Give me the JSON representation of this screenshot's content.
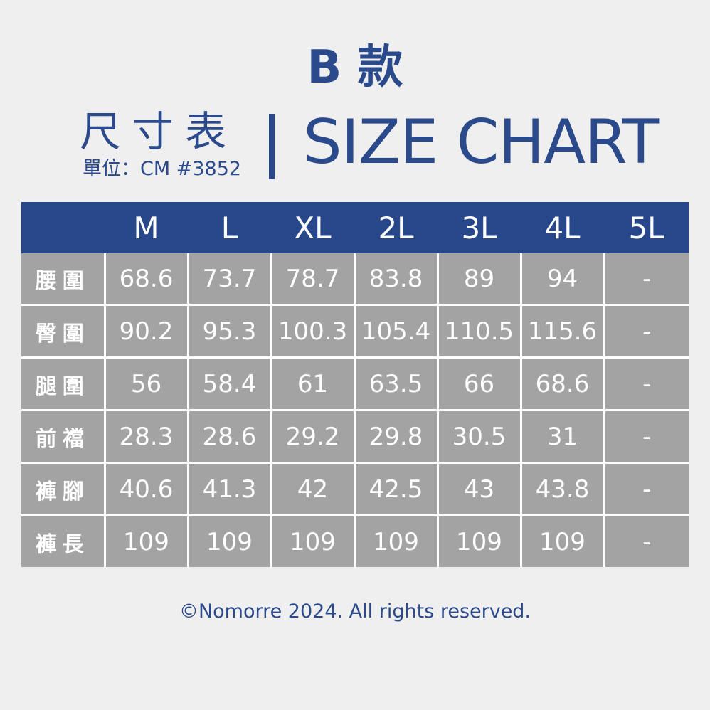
{
  "header": {
    "style_title": "B 款",
    "zh_title": "尺寸表",
    "unit": "單位：CM #3852",
    "en_title": "SIZE CHART"
  },
  "table": {
    "corner": "",
    "sizes": [
      "M",
      "L",
      "XL",
      "2L",
      "3L",
      "4L",
      "5L"
    ],
    "rows": [
      {
        "label": "腰圍",
        "values": [
          "68.6",
          "73.7",
          "78.7",
          "83.8",
          "89",
          "94",
          "-"
        ]
      },
      {
        "label": "臀圍",
        "values": [
          "90.2",
          "95.3",
          "100.3",
          "105.4",
          "110.5",
          "115.6",
          "-"
        ]
      },
      {
        "label": "腿圍",
        "values": [
          "56",
          "58.4",
          "61",
          "63.5",
          "66",
          "68.6",
          "-"
        ]
      },
      {
        "label": "前襠",
        "values": [
          "28.3",
          "28.6",
          "29.2",
          "29.8",
          "30.5",
          "31",
          "-"
        ]
      },
      {
        "label": "褲腳",
        "values": [
          "40.6",
          "41.3",
          "42",
          "42.5",
          "43",
          "43.8",
          "-"
        ]
      },
      {
        "label": "褲長",
        "values": [
          "109",
          "109",
          "109",
          "109",
          "109",
          "109",
          "-"
        ]
      }
    ]
  },
  "footer": {
    "copyright": "©Nomorre 2024. All rights reserved."
  },
  "colors": {
    "brand_blue": "#2b4a8c",
    "header_bg": "#27478a",
    "cell_bg": "#a3a3a3",
    "page_bg": "#efefef"
  }
}
